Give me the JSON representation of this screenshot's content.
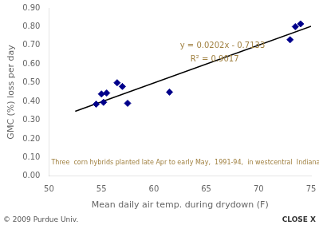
{
  "chart_data": {
    "type": "scatter",
    "xlabel": "Mean daily air temp. during drydown (F)",
    "ylabel": "GMC (%) loss per day",
    "series": [
      {
        "type": "scatter",
        "marker": "diamond",
        "color": "#00008B",
        "x": [
          54.5,
          55.0,
          55.2,
          55.5,
          56.5,
          57.0,
          57.5,
          61.5,
          73.0,
          73.5,
          74.0
        ],
        "values": [
          0.385,
          0.44,
          0.395,
          0.445,
          0.5,
          0.48,
          0.39,
          0.45,
          0.73,
          0.8,
          0.815
        ]
      },
      {
        "type": "line",
        "color": "#000000",
        "x": [
          52.5,
          75
        ],
        "values": [
          0.3472,
          0.8017
        ]
      }
    ],
    "annotations": [
      {
        "text": "y = 0.0202x - 0.7133",
        "color": "#A08040"
      },
      {
        "text": "R² = 0.9017",
        "color": "#A08040"
      },
      {
        "text": "Three  corn hybrids planted late Apr to early May,  1991-94,  in westcentral  Indiana",
        "color": "#A08040"
      }
    ],
    "footer": [
      "© 2009 Purdue Univ.",
      "CLOSE X"
    ],
    "xlim": [
      50,
      75
    ],
    "ylim": [
      0.0,
      0.9
    ],
    "xticks": [
      50,
      55,
      60,
      65,
      70,
      75
    ],
    "yticks": [
      {
        "value": 0.0,
        "label": "0.00"
      },
      {
        "value": 0.1,
        "label": "0.10"
      },
      {
        "value": 0.2,
        "label": "0.20"
      },
      {
        "value": 0.3,
        "label": "0.30"
      },
      {
        "value": 0.4,
        "label": "0.40"
      },
      {
        "value": 0.5,
        "label": "0.50"
      },
      {
        "value": 0.6,
        "label": "0.60"
      },
      {
        "value": 0.7,
        "label": "0.70"
      },
      {
        "value": 0.8,
        "label": "0.80"
      },
      {
        "value": 0.9,
        "label": "0.90"
      }
    ],
    "grid": false
  }
}
